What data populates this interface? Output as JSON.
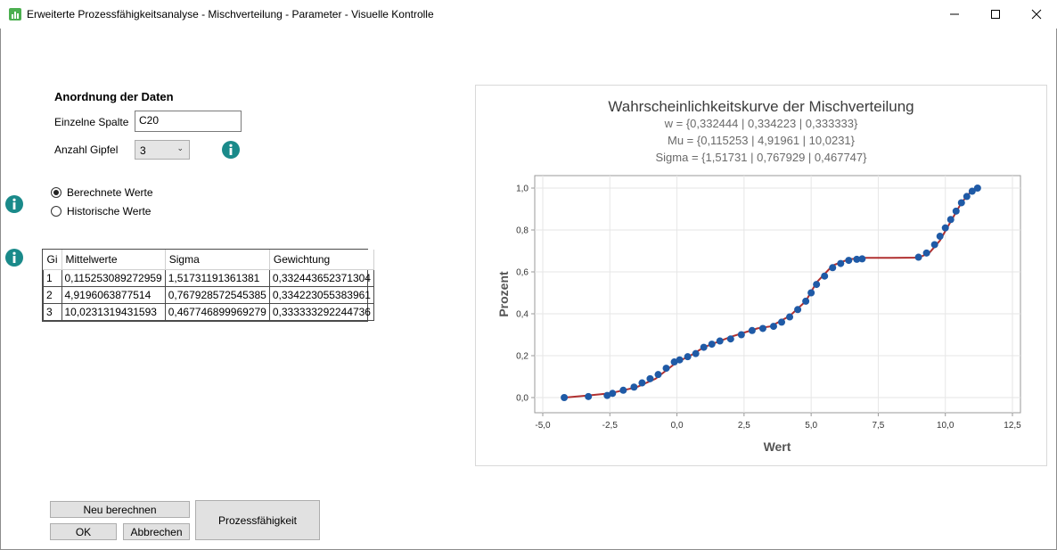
{
  "window": {
    "title": "Erweiterte Prozessfähigkeitsanalyse - Mischverteilung - Parameter - Visuelle Kontrolle",
    "app_icon": "bar-chart-icon",
    "controls": [
      "minimize-icon",
      "maximize-icon",
      "close-icon"
    ]
  },
  "form": {
    "section_title": "Anordnung der Daten",
    "single_column_label": "Einzelne Spalte",
    "single_column_value": "C20",
    "peaks_label": "Anzahl Gipfel",
    "peaks_value": "3",
    "radio_calculated": "Berechnete Werte",
    "radio_historical": "Historische Werte",
    "radio_selected": "calculated"
  },
  "grid": {
    "headers": [
      "Gi",
      "Mittelwerte",
      "Sigma",
      "Gewichtung"
    ],
    "rows": [
      [
        "1",
        "0,115253089272959",
        "1,51731191361381",
        "0,332443652371304"
      ],
      [
        "2",
        "4,9196063877514",
        "0,767928572545385",
        "0,334223055383961"
      ],
      [
        "3",
        "10,0231319431593",
        "0,467746899969279",
        "0,333333292244736"
      ]
    ]
  },
  "buttons": {
    "recalculate": "Neu berechnen",
    "ok": "OK",
    "cancel": "Abbrechen",
    "capability": "Prozessfähigkeit"
  },
  "colors": {
    "accent_info": "#1a8a8a",
    "point": "#1f5aa6",
    "line": "#b03030",
    "titlebar_icon": "#4caf50"
  },
  "chart_data": {
    "type": "scatter",
    "title": "Wahrscheinlichkeitskurve der Mischverteilung",
    "subtitles": [
      "w = {0,332444 | 0,334223 | 0,333333}",
      "Mu = {0,115253 | 4,91961 | 10,0231}",
      "Sigma = {1,51731 | 0,767929 | 0,467747}"
    ],
    "xlabel": "Wert",
    "ylabel": "Prozent",
    "xlim": [
      -5.0,
      12.5
    ],
    "ylim": [
      0.0,
      1.0
    ],
    "xticks": [
      "-5,0",
      "-2,5",
      "0,0",
      "2,5",
      "5,0",
      "7,5",
      "10,0",
      "12,5"
    ],
    "yticks": [
      "0,0",
      "0,2",
      "0,4",
      "0,6",
      "0,8",
      "1,0"
    ],
    "grid": true,
    "fitted_curve": {
      "x": [
        -4.2,
        -3.3,
        -2.5,
        -1.5,
        -0.8,
        0.0,
        0.5,
        1.0,
        2.0,
        3.0,
        3.5,
        4.2,
        4.8,
        5.2,
        5.8,
        6.4,
        7.0,
        8.0,
        9.0,
        9.4,
        9.8,
        10.2,
        10.6,
        11.0,
        11.2
      ],
      "y": [
        0.0,
        0.01,
        0.02,
        0.05,
        0.09,
        0.17,
        0.2,
        0.24,
        0.29,
        0.33,
        0.34,
        0.39,
        0.46,
        0.55,
        0.63,
        0.66,
        0.667,
        0.667,
        0.668,
        0.69,
        0.75,
        0.84,
        0.93,
        0.99,
        1.0
      ]
    },
    "points": {
      "x": [
        -4.2,
        -3.3,
        -2.6,
        -2.4,
        -2.0,
        -1.6,
        -1.3,
        -1.0,
        -0.7,
        -0.4,
        -0.1,
        0.1,
        0.4,
        0.7,
        1.0,
        1.3,
        1.6,
        2.0,
        2.4,
        2.8,
        3.2,
        3.6,
        3.9,
        4.2,
        4.5,
        4.8,
        5.0,
        5.2,
        5.5,
        5.8,
        6.1,
        6.4,
        6.7,
        6.9,
        9.0,
        9.3,
        9.6,
        9.8,
        10.0,
        10.2,
        10.4,
        10.6,
        10.8,
        11.0,
        11.2
      ],
      "y": [
        0.0,
        0.005,
        0.01,
        0.02,
        0.035,
        0.05,
        0.07,
        0.09,
        0.11,
        0.14,
        0.17,
        0.18,
        0.195,
        0.21,
        0.24,
        0.255,
        0.27,
        0.28,
        0.3,
        0.32,
        0.33,
        0.34,
        0.36,
        0.385,
        0.42,
        0.46,
        0.5,
        0.54,
        0.58,
        0.62,
        0.64,
        0.655,
        0.66,
        0.662,
        0.67,
        0.69,
        0.73,
        0.77,
        0.81,
        0.85,
        0.89,
        0.93,
        0.96,
        0.985,
        1.0
      ]
    }
  }
}
